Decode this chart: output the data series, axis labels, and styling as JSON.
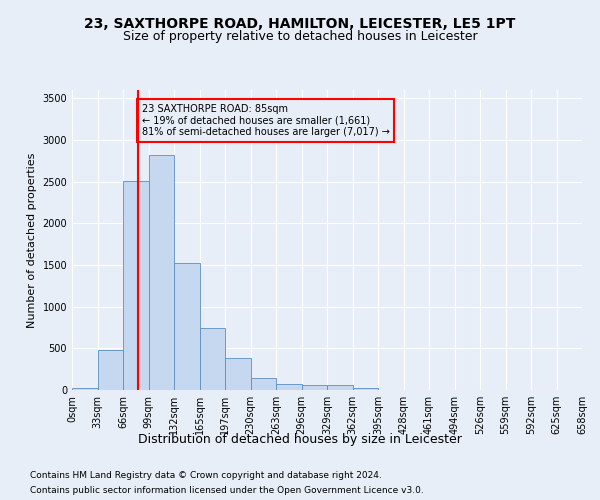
{
  "title": "23, SAXTHORPE ROAD, HAMILTON, LEICESTER, LE5 1PT",
  "subtitle": "Size of property relative to detached houses in Leicester",
  "xlabel": "Distribution of detached houses by size in Leicester",
  "ylabel": "Number of detached properties",
  "footnote1": "Contains HM Land Registry data © Crown copyright and database right 2024.",
  "footnote2": "Contains public sector information licensed under the Open Government Licence v3.0.",
  "annotation_line1": "23 SAXTHORPE ROAD: 85sqm",
  "annotation_line2": "← 19% of detached houses are smaller (1,661)",
  "annotation_line3": "81% of semi-detached houses are larger (7,017) →",
  "bar_values": [
    20,
    480,
    2510,
    2820,
    1520,
    750,
    390,
    140,
    75,
    55,
    55,
    30,
    5,
    2,
    1,
    0,
    0,
    0,
    0,
    0
  ],
  "bar_color": "#c5d8f0",
  "bar_edge_color": "#5a8fc0",
  "categories": [
    "0sqm",
    "33sqm",
    "66sqm",
    "99sqm",
    "132sqm",
    "165sqm",
    "197sqm",
    "230sqm",
    "263sqm",
    "296sqm",
    "329sqm",
    "362sqm",
    "395sqm",
    "428sqm",
    "461sqm",
    "494sqm",
    "526sqm",
    "559sqm",
    "592sqm",
    "625sqm",
    "658sqm"
  ],
  "ylim": [
    0,
    3600
  ],
  "yticks": [
    0,
    500,
    1000,
    1500,
    2000,
    2500,
    3000,
    3500
  ],
  "bg_color": "#e8eef8",
  "grid_color": "#ffffff",
  "title_fontsize": 10,
  "subtitle_fontsize": 9,
  "ylabel_fontsize": 8,
  "xlabel_fontsize": 9,
  "tick_fontsize": 7,
  "annotation_fontsize": 7,
  "footnote_fontsize": 6.5
}
